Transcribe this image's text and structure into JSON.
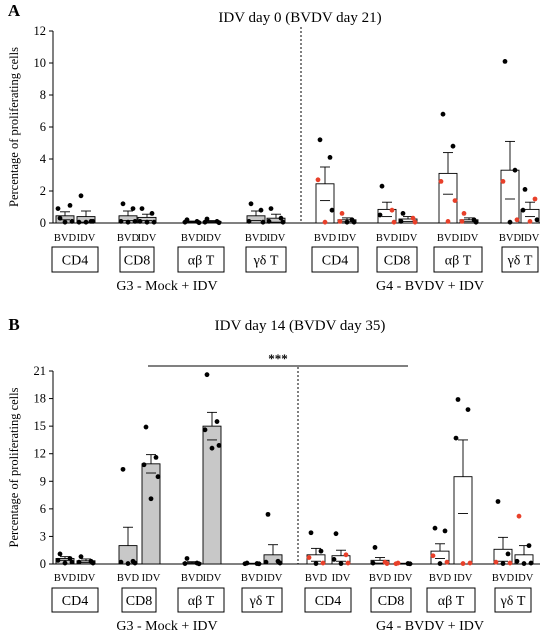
{
  "chart_data": [
    {
      "type": "bar",
      "panel_label": "A",
      "title": "IDV day 0 (BVDV day 21)",
      "ylabel": "Percentage of proliferating cells",
      "ylim": [
        0,
        12
      ],
      "yticks": [
        "0",
        "2",
        "4",
        "6",
        "8",
        "10",
        "12"
      ],
      "bar_labels": [
        "BVD",
        "IDV"
      ],
      "groups": [
        {
          "name": "G3 - Mock + IDV",
          "cell_types": [
            "CD4",
            "CD8",
            "αβ T",
            "γδ T"
          ],
          "fill": "#c8c8c8"
        },
        {
          "name": "G4 - BVDV + IDV",
          "cell_types": [
            "CD4",
            "CD8",
            "αβ T",
            "γδ T"
          ],
          "fill": "#ffffff"
        }
      ],
      "bars": [
        {
          "group": 0,
          "cell": "CD4",
          "label": "BVD",
          "mean": 0.45,
          "err": 0.25,
          "points": [
            {
              "v": 0.3,
              "c": "black"
            },
            {
              "v": 1.1,
              "c": "black"
            },
            {
              "v": 0.9,
              "c": "black"
            },
            {
              "v": 0.1,
              "c": "black"
            },
            {
              "v": 0.05,
              "c": "black"
            }
          ]
        },
        {
          "group": 0,
          "cell": "CD4",
          "label": "IDV",
          "mean": 0.4,
          "err": 0.35,
          "points": [
            {
              "v": 1.7,
              "c": "black"
            },
            {
              "v": 0.1,
              "c": "black"
            },
            {
              "v": 0.05,
              "c": "black"
            },
            {
              "v": 0.1,
              "c": "black"
            },
            {
              "v": 0.05,
              "c": "black"
            }
          ]
        },
        {
          "group": 0,
          "cell": "CD8",
          "label": "BVD",
          "mean": 0.45,
          "err": 0.3,
          "points": [
            {
              "v": 1.2,
              "c": "black"
            },
            {
              "v": 0.9,
              "c": "black"
            },
            {
              "v": 0.1,
              "c": "black"
            },
            {
              "v": 0.1,
              "c": "black"
            },
            {
              "v": 0.05,
              "c": "black"
            }
          ]
        },
        {
          "group": 0,
          "cell": "CD8",
          "label": "IDV",
          "mean": 0.35,
          "err": 0.2,
          "points": [
            {
              "v": 0.9,
              "c": "black"
            },
            {
              "v": 0.6,
              "c": "black"
            },
            {
              "v": 0.1,
              "c": "black"
            },
            {
              "v": 0.05,
              "c": "black"
            },
            {
              "v": 0.05,
              "c": "black"
            }
          ]
        },
        {
          "group": 0,
          "cell": "αβ T",
          "label": "BVD",
          "mean": 0.08,
          "err": 0.04,
          "points": [
            {
              "v": 0.2,
              "c": "black"
            },
            {
              "v": 0.1,
              "c": "black"
            },
            {
              "v": 0.05,
              "c": "black"
            },
            {
              "v": 0.02,
              "c": "black"
            }
          ]
        },
        {
          "group": 0,
          "cell": "αβ T",
          "label": "IDV",
          "mean": 0.1,
          "err": 0.05,
          "points": [
            {
              "v": 0.25,
              "c": "black"
            },
            {
              "v": 0.1,
              "c": "black"
            },
            {
              "v": 0.05,
              "c": "black"
            },
            {
              "v": 0.02,
              "c": "black"
            }
          ]
        },
        {
          "group": 0,
          "cell": "γδ T",
          "label": "BVD",
          "mean": 0.45,
          "err": 0.3,
          "points": [
            {
              "v": 1.2,
              "c": "black"
            },
            {
              "v": 0.8,
              "c": "black"
            },
            {
              "v": 0.1,
              "c": "black"
            },
            {
              "v": 0.05,
              "c": "black"
            }
          ]
        },
        {
          "group": 0,
          "cell": "γδ T",
          "label": "IDV",
          "mean": 0.3,
          "err": 0.25,
          "points": [
            {
              "v": 0.9,
              "c": "black"
            },
            {
              "v": 0.3,
              "c": "black"
            },
            {
              "v": 0.1,
              "c": "black"
            },
            {
              "v": 0.05,
              "c": "black"
            }
          ]
        },
        {
          "group": 1,
          "cell": "CD4",
          "label": "BVD",
          "mean": 2.45,
          "err": 1.05,
          "points": [
            {
              "v": 5.2,
              "c": "black"
            },
            {
              "v": 4.1,
              "c": "black"
            },
            {
              "v": 2.7,
              "c": "red"
            },
            {
              "v": 0.8,
              "c": "black"
            },
            {
              "v": 0.05,
              "c": "red"
            }
          ]
        },
        {
          "group": 1,
          "cell": "CD4",
          "label": "IDV",
          "mean": 0.2,
          "err": 0.12,
          "points": [
            {
              "v": 0.6,
              "c": "red"
            },
            {
              "v": 0.2,
              "c": "black"
            },
            {
              "v": 0.1,
              "c": "red"
            },
            {
              "v": 0.05,
              "c": "black"
            },
            {
              "v": 0.05,
              "c": "black"
            }
          ]
        },
        {
          "group": 1,
          "cell": "CD8",
          "label": "BVD",
          "mean": 0.85,
          "err": 0.45,
          "points": [
            {
              "v": 2.3,
              "c": "black"
            },
            {
              "v": 0.8,
              "c": "red"
            },
            {
              "v": 0.5,
              "c": "black"
            },
            {
              "v": 0.05,
              "c": "red"
            }
          ]
        },
        {
          "group": 1,
          "cell": "CD8",
          "label": "IDV",
          "mean": 0.25,
          "err": 0.15,
          "points": [
            {
              "v": 0.6,
              "c": "black"
            },
            {
              "v": 0.3,
              "c": "red"
            },
            {
              "v": 0.1,
              "c": "black"
            },
            {
              "v": 0.05,
              "c": "red"
            }
          ]
        },
        {
          "group": 1,
          "cell": "αβ T",
          "label": "BVD",
          "mean": 3.1,
          "err": 1.3,
          "points": [
            {
              "v": 6.8,
              "c": "black"
            },
            {
              "v": 4.8,
              "c": "black"
            },
            {
              "v": 2.6,
              "c": "red"
            },
            {
              "v": 1.4,
              "c": "red"
            },
            {
              "v": 0.1,
              "c": "red"
            }
          ]
        },
        {
          "group": 1,
          "cell": "αβ T",
          "label": "IDV",
          "mean": 0.2,
          "err": 0.12,
          "points": [
            {
              "v": 0.6,
              "c": "red"
            },
            {
              "v": 0.2,
              "c": "black"
            },
            {
              "v": 0.1,
              "c": "red"
            },
            {
              "v": 0.05,
              "c": "black"
            }
          ]
        },
        {
          "group": 1,
          "cell": "γδ T",
          "label": "BVD",
          "mean": 3.3,
          "err": 1.8,
          "points": [
            {
              "v": 10.1,
              "c": "black"
            },
            {
              "v": 3.3,
              "c": "black"
            },
            {
              "v": 2.6,
              "c": "red"
            },
            {
              "v": 0.2,
              "c": "red"
            },
            {
              "v": 0.05,
              "c": "black"
            }
          ]
        },
        {
          "group": 1,
          "cell": "γδ T",
          "label": "IDV",
          "mean": 0.85,
          "err": 0.45,
          "points": [
            {
              "v": 2.1,
              "c": "black"
            },
            {
              "v": 1.5,
              "c": "red"
            },
            {
              "v": 0.8,
              "c": "black"
            },
            {
              "v": 0.2,
              "c": "black"
            },
            {
              "v": 0.1,
              "c": "red"
            }
          ]
        }
      ]
    },
    {
      "type": "bar",
      "panel_label": "B",
      "title": "IDV day 14 (BVDV day 35)",
      "ylabel": "Percentage of proliferating cells",
      "ylim": [
        0,
        21
      ],
      "yticks": [
        "0",
        "3",
        "6",
        "9",
        "12",
        "15",
        "18",
        "21"
      ],
      "bar_labels": [
        "BVD",
        "IDV"
      ],
      "significance": "***",
      "groups": [
        {
          "name": "G3 - Mock + IDV",
          "cell_types": [
            "CD4",
            "CD8",
            "αβ T",
            "γδ T"
          ],
          "fill": "#c8c8c8"
        },
        {
          "name": "G4 - BVDV + IDV",
          "cell_types": [
            "CD4",
            "CD8",
            "αβ T",
            "γδ T"
          ],
          "fill": "#ffffff"
        }
      ],
      "bars": [
        {
          "group": 0,
          "cell": "CD4",
          "label": "BVD",
          "mean": 0.6,
          "err": 0.2,
          "points": [
            {
              "v": 1.1,
              "c": "black"
            },
            {
              "v": 0.6,
              "c": "black"
            },
            {
              "v": 0.4,
              "c": "black"
            },
            {
              "v": 0.2,
              "c": "black"
            },
            {
              "v": 0.1,
              "c": "black"
            }
          ]
        },
        {
          "group": 0,
          "cell": "CD4",
          "label": "IDV",
          "mean": 0.35,
          "err": 0.2,
          "points": [
            {
              "v": 0.8,
              "c": "black"
            },
            {
              "v": 0.3,
              "c": "black"
            },
            {
              "v": 0.2,
              "c": "black"
            },
            {
              "v": 0.1,
              "c": "black"
            }
          ]
        },
        {
          "group": 0,
          "cell": "CD8",
          "label": "BVD",
          "mean": 2.0,
          "err": 2.0,
          "points": [
            {
              "v": 10.3,
              "c": "black"
            },
            {
              "v": 0.3,
              "c": "black"
            },
            {
              "v": 0.2,
              "c": "black"
            },
            {
              "v": 0.1,
              "c": "black"
            },
            {
              "v": 0.05,
              "c": "black"
            }
          ]
        },
        {
          "group": 0,
          "cell": "CD8",
          "label": "IDV",
          "mean": 10.9,
          "err": 1.0,
          "points": [
            {
              "v": 14.9,
              "c": "black"
            },
            {
              "v": 11.6,
              "c": "black"
            },
            {
              "v": 10.8,
              "c": "black"
            },
            {
              "v": 9.5,
              "c": "black"
            },
            {
              "v": 7.1,
              "c": "black"
            }
          ]
        },
        {
          "group": 0,
          "cell": "αβ T",
          "label": "BVD",
          "mean": 0.15,
          "err": 0.1,
          "points": [
            {
              "v": 0.6,
              "c": "black"
            },
            {
              "v": 0.1,
              "c": "black"
            },
            {
              "v": 0.05,
              "c": "black"
            },
            {
              "v": 0.02,
              "c": "black"
            }
          ]
        },
        {
          "group": 0,
          "cell": "αβ T",
          "label": "IDV",
          "mean": 15.0,
          "err": 1.5,
          "points": [
            {
              "v": 20.6,
              "c": "black"
            },
            {
              "v": 15.5,
              "c": "black"
            },
            {
              "v": 14.6,
              "c": "black"
            },
            {
              "v": 12.9,
              "c": "black"
            },
            {
              "v": 12.6,
              "c": "black"
            }
          ]
        },
        {
          "group": 0,
          "cell": "γδ T",
          "label": "BVD",
          "mean": 0.05,
          "err": 0.03,
          "points": [
            {
              "v": 0.1,
              "c": "black"
            },
            {
              "v": 0.05,
              "c": "black"
            },
            {
              "v": 0.03,
              "c": "black"
            },
            {
              "v": 0.02,
              "c": "black"
            }
          ]
        },
        {
          "group": 0,
          "cell": "γδ T",
          "label": "IDV",
          "mean": 1.0,
          "err": 1.1,
          "points": [
            {
              "v": 5.4,
              "c": "black"
            },
            {
              "v": 0.3,
              "c": "black"
            },
            {
              "v": 0.2,
              "c": "black"
            },
            {
              "v": 0.1,
              "c": "black"
            }
          ]
        },
        {
          "group": 1,
          "cell": "CD4",
          "label": "BVD",
          "mean": 1.0,
          "err": 0.7,
          "points": [
            {
              "v": 3.4,
              "c": "black"
            },
            {
              "v": 1.4,
              "c": "black"
            },
            {
              "v": 0.7,
              "c": "red"
            },
            {
              "v": 0.1,
              "c": "red"
            },
            {
              "v": 0.05,
              "c": "black"
            }
          ]
        },
        {
          "group": 1,
          "cell": "CD4",
          "label": "IDV",
          "mean": 0.9,
          "err": 0.6,
          "points": [
            {
              "v": 3.3,
              "c": "black"
            },
            {
              "v": 1.0,
              "c": "red"
            },
            {
              "v": 0.5,
              "c": "black"
            },
            {
              "v": 0.1,
              "c": "red"
            },
            {
              "v": 0.05,
              "c": "black"
            }
          ]
        },
        {
          "group": 1,
          "cell": "CD8",
          "label": "BVD",
          "mean": 0.4,
          "err": 0.3,
          "points": [
            {
              "v": 1.8,
              "c": "black"
            },
            {
              "v": 0.2,
              "c": "red"
            },
            {
              "v": 0.1,
              "c": "black"
            },
            {
              "v": 0.05,
              "c": "red"
            }
          ]
        },
        {
          "group": 1,
          "cell": "CD8",
          "label": "IDV",
          "mean": 0.05,
          "err": 0.03,
          "points": [
            {
              "v": 0.1,
              "c": "red"
            },
            {
              "v": 0.05,
              "c": "black"
            },
            {
              "v": 0.03,
              "c": "red"
            },
            {
              "v": 0.02,
              "c": "black"
            }
          ]
        },
        {
          "group": 1,
          "cell": "αβ T",
          "label": "BVD",
          "mean": 1.4,
          "err": 0.8,
          "points": [
            {
              "v": 3.9,
              "c": "black"
            },
            {
              "v": 3.6,
              "c": "black"
            },
            {
              "v": 0.9,
              "c": "red"
            },
            {
              "v": 0.2,
              "c": "red"
            },
            {
              "v": 0.05,
              "c": "black"
            }
          ]
        },
        {
          "group": 1,
          "cell": "αβ T",
          "label": "IDV",
          "mean": 9.5,
          "err": 4.0,
          "points": [
            {
              "v": 17.9,
              "c": "black"
            },
            {
              "v": 16.8,
              "c": "black"
            },
            {
              "v": 13.7,
              "c": "black"
            },
            {
              "v": 0.1,
              "c": "red"
            },
            {
              "v": 0.05,
              "c": "red"
            }
          ]
        },
        {
          "group": 1,
          "cell": "γδ T",
          "label": "BVD",
          "mean": 1.6,
          "err": 1.3,
          "points": [
            {
              "v": 6.8,
              "c": "black"
            },
            {
              "v": 1.1,
              "c": "black"
            },
            {
              "v": 0.2,
              "c": "red"
            },
            {
              "v": 0.1,
              "c": "red"
            },
            {
              "v": 0.05,
              "c": "black"
            }
          ]
        },
        {
          "group": 1,
          "cell": "γδ T",
          "label": "IDV",
          "mean": 1.0,
          "err": 1.0,
          "points": [
            {
              "v": 5.2,
              "c": "red"
            },
            {
              "v": 2.0,
              "c": "black"
            },
            {
              "v": 0.3,
              "c": "black"
            },
            {
              "v": 0.1,
              "c": "black"
            },
            {
              "v": 0.05,
              "c": "black"
            }
          ]
        }
      ]
    }
  ],
  "colors": {
    "red_points": "#e8402a",
    "black_points": "#000000",
    "mock_bar_fill": "#c8c8c8",
    "bvdv_bar_fill": "#ffffff"
  }
}
